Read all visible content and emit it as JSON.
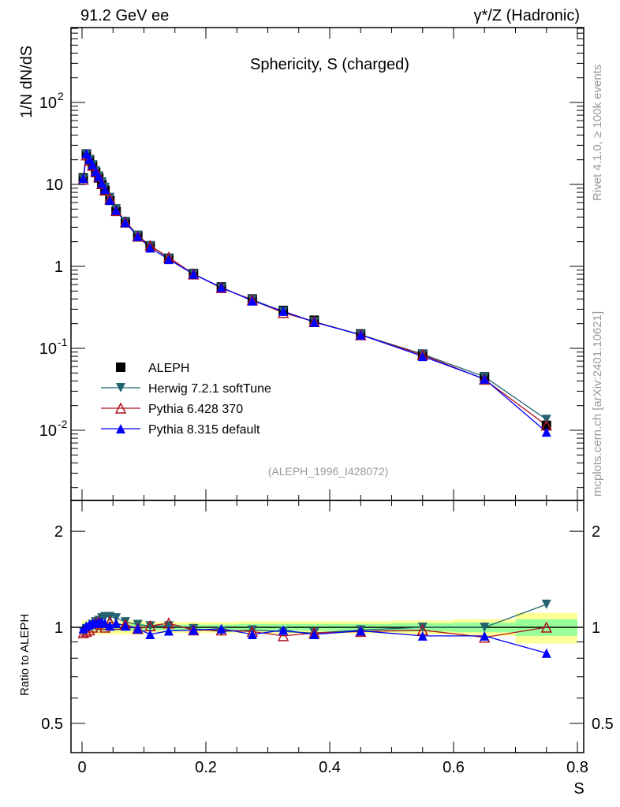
{
  "header": {
    "left": "91.2 GeV ee",
    "right": "γ*/Z (Hadronic)"
  },
  "side": {
    "rivet": "Rivet 4.1.0, ≥ 100k events",
    "mcplots": "mcplots.cern.ch [arXiv:2401.10621]"
  },
  "watermark": "(ALEPH_1996_I428072)",
  "colors": {
    "data": "#000000",
    "herwig": "#22636f",
    "pythia6": "#b0101e",
    "pythia8": "#0000ff",
    "band_outer": "#ffff99",
    "band_inner": "#99ff99"
  },
  "chart_data": {
    "type": "scatter",
    "title": "Sphericity, S (charged)",
    "xlabel": "S",
    "ylabel": "1/N  dN/dS",
    "ratio_ylabel": "Ratio to ALEPH",
    "xlim": [
      -0.02,
      0.81
    ],
    "ylim": [
      0.0014,
      820
    ],
    "ratio_ylim": [
      0.405,
      2.5
    ],
    "xticks": [
      "0",
      "0.2",
      "0.4",
      "0.6",
      "0.8"
    ],
    "yticks_main": [
      "10^-2",
      "10^-1",
      "1",
      "10",
      "10^2"
    ],
    "yticks_ratio": [
      "0.5",
      "1",
      "2"
    ],
    "legend": {
      "placement": "center-left",
      "entries": [
        "ALEPH",
        "Herwig 7.2.1 softTune",
        "Pythia 6.428 370",
        "Pythia 8.315 default"
      ]
    },
    "x": [
      0.002,
      0.007,
      0.012,
      0.017,
      0.022,
      0.027,
      0.032,
      0.037,
      0.045,
      0.055,
      0.07,
      0.09,
      0.11,
      0.14,
      0.18,
      0.225,
      0.275,
      0.325,
      0.375,
      0.45,
      0.55,
      0.65,
      0.75
    ],
    "aleph": [
      12,
      23.5,
      20,
      17,
      14,
      12,
      10,
      8.5,
      6.4,
      4.7,
      3.4,
      2.35,
      1.77,
      1.25,
      0.82,
      0.56,
      0.4,
      0.29,
      0.22,
      0.15,
      0.085,
      0.045,
      0.0115
    ],
    "ratios": [
      {
        "name": "Herwig 7.2.1 softTune",
        "key": "herwig",
        "marker": "down",
        "values": [
          0.97,
          0.99,
          1.0,
          1.02,
          1.04,
          1.05,
          1.07,
          1.08,
          1.08,
          1.07,
          1.04,
          1.02,
          1.01,
          1.01,
          0.99,
          0.97,
          0.98,
          0.97,
          0.96,
          0.98,
          1.0,
          1.0,
          1.18
        ]
      },
      {
        "name": "Pythia 6.428 370",
        "key": "pythia6",
        "marker": "up-open",
        "values": [
          0.96,
          0.97,
          0.98,
          1.0,
          1.03,
          1.04,
          1.02,
          1.0,
          1.04,
          1.02,
          1.02,
          0.99,
          1.01,
          1.03,
          0.98,
          0.98,
          0.97,
          0.94,
          0.96,
          0.97,
          0.98,
          0.93,
          1.0
        ]
      },
      {
        "name": "Pythia 8.315 default",
        "key": "pythia8",
        "marker": "up",
        "values": [
          0.99,
          1.01,
          1.02,
          1.03,
          1.03,
          1.04,
          1.04,
          1.03,
          1.01,
          1.03,
          1.01,
          0.99,
          0.95,
          0.975,
          0.98,
          0.99,
          0.95,
          0.98,
          0.95,
          0.975,
          0.94,
          0.94,
          0.83
        ]
      }
    ],
    "bands": [
      {
        "x0": 0.0,
        "x1": 0.1,
        "outer": 0.05,
        "inner": 0.025
      },
      {
        "x0": 0.1,
        "x1": 0.25,
        "outer": 0.04,
        "inner": 0.02
      },
      {
        "x0": 0.25,
        "x1": 0.5,
        "outer": 0.045,
        "inner": 0.025
      },
      {
        "x0": 0.5,
        "x1": 0.6,
        "outer": 0.05,
        "inner": 0.03
      },
      {
        "x0": 0.6,
        "x1": 0.7,
        "outer": 0.06,
        "inner": 0.035
      },
      {
        "x0": 0.7,
        "x1": 0.8,
        "outer": 0.11,
        "inner": 0.06
      }
    ]
  }
}
